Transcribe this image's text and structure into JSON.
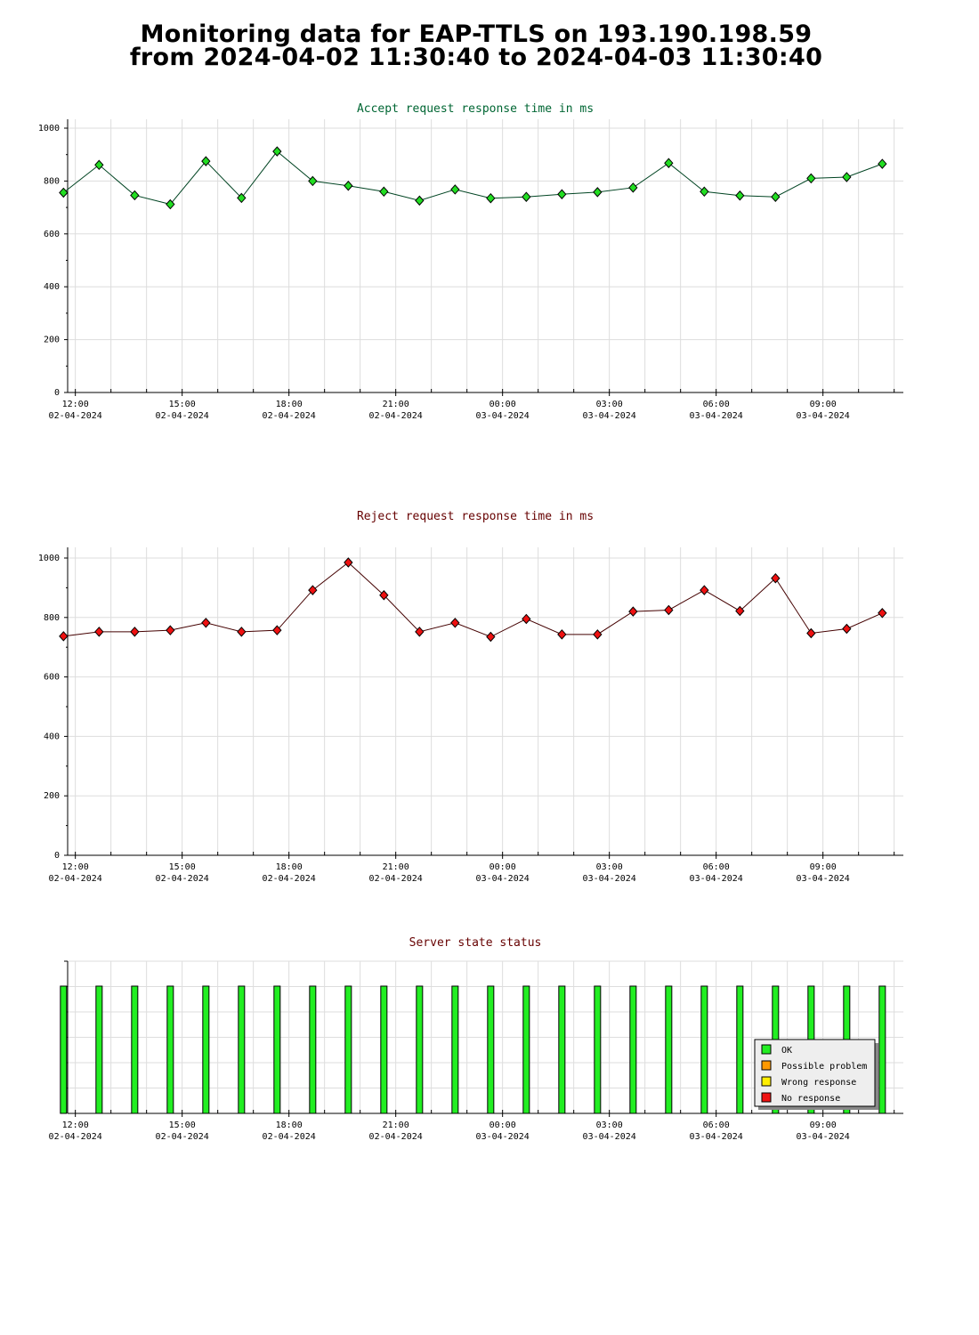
{
  "page": {
    "title_line1": "Monitoring data for EAP-TTLS on 193.190.198.59",
    "title_line2": "from 2024-04-02 11:30:40 to 2024-04-03 11:30:40"
  },
  "colors": {
    "accept_title": "#006633",
    "reject_title": "#660000",
    "status_title": "#660000",
    "accept_marker": "#22dd22",
    "reject_marker": "#ee1111",
    "ok": "#22ee22",
    "possible_problem": "#ff9900",
    "wrong_response": "#ffee00",
    "no_response": "#ee1111",
    "grid": "#dddddd"
  },
  "x_axis": {
    "ticks": [
      {
        "time": "12:00",
        "date": "02-04-2024"
      },
      {
        "time": "15:00",
        "date": "02-04-2024"
      },
      {
        "time": "18:00",
        "date": "02-04-2024"
      },
      {
        "time": "21:00",
        "date": "02-04-2024"
      },
      {
        "time": "00:00",
        "date": "03-04-2024"
      },
      {
        "time": "03:00",
        "date": "03-04-2024"
      },
      {
        "time": "06:00",
        "date": "03-04-2024"
      },
      {
        "time": "09:00",
        "date": "03-04-2024"
      }
    ]
  },
  "chart_data": [
    {
      "type": "line",
      "title": "Accept request response time in ms",
      "xlabel": "",
      "ylabel": "",
      "ylim": [
        0,
        1000
      ],
      "yticks": [
        0,
        200,
        400,
        600,
        800,
        1000
      ],
      "x": [
        "2024-04-02 11:40",
        "2024-04-02 12:40",
        "2024-04-02 13:40",
        "2024-04-02 14:40",
        "2024-04-02 15:40",
        "2024-04-02 16:40",
        "2024-04-02 17:40",
        "2024-04-02 18:40",
        "2024-04-02 19:40",
        "2024-04-02 20:40",
        "2024-04-02 21:40",
        "2024-04-02 22:40",
        "2024-04-02 23:40",
        "2024-04-03 00:40",
        "2024-04-03 01:40",
        "2024-04-03 02:40",
        "2024-04-03 03:40",
        "2024-04-03 04:40",
        "2024-04-03 05:40",
        "2024-04-03 06:40",
        "2024-04-03 07:40",
        "2024-04-03 08:40",
        "2024-04-03 09:40",
        "2024-04-03 10:40"
      ],
      "values": [
        756,
        861,
        746,
        712,
        875,
        736,
        912,
        800,
        782,
        760,
        726,
        768,
        735,
        740,
        750,
        758,
        775,
        868,
        760,
        745,
        740,
        810,
        815,
        865
      ],
      "grid": true
    },
    {
      "type": "line",
      "title": "Reject request response time in ms",
      "xlabel": "",
      "ylabel": "",
      "ylim": [
        0,
        1000
      ],
      "yticks": [
        0,
        200,
        400,
        600,
        800,
        1000
      ],
      "x": [
        "2024-04-02 11:40",
        "2024-04-02 12:40",
        "2024-04-02 13:40",
        "2024-04-02 14:40",
        "2024-04-02 15:40",
        "2024-04-02 16:40",
        "2024-04-02 17:40",
        "2024-04-02 18:40",
        "2024-04-02 19:40",
        "2024-04-02 20:40",
        "2024-04-02 21:40",
        "2024-04-02 22:40",
        "2024-04-02 23:40",
        "2024-04-03 00:40",
        "2024-04-03 01:40",
        "2024-04-03 02:40",
        "2024-04-03 03:40",
        "2024-04-03 04:40",
        "2024-04-03 05:40",
        "2024-04-03 06:40",
        "2024-04-03 07:40",
        "2024-04-03 08:40",
        "2024-04-03 09:40",
        "2024-04-03 10:40"
      ],
      "values": [
        737,
        752,
        752,
        757,
        782,
        752,
        757,
        892,
        985,
        875,
        752,
        782,
        735,
        795,
        743,
        743,
        820,
        825,
        892,
        822,
        932,
        747,
        762,
        815
      ],
      "grid": true
    },
    {
      "type": "bar",
      "title": "Server state status",
      "x": [
        "2024-04-02 11:40",
        "2024-04-02 12:40",
        "2024-04-02 13:40",
        "2024-04-02 14:40",
        "2024-04-02 15:40",
        "2024-04-02 16:40",
        "2024-04-02 17:40",
        "2024-04-02 18:40",
        "2024-04-02 19:40",
        "2024-04-02 20:40",
        "2024-04-02 21:40",
        "2024-04-02 22:40",
        "2024-04-02 23:40",
        "2024-04-03 00:40",
        "2024-04-03 01:40",
        "2024-04-03 02:40",
        "2024-04-03 03:40",
        "2024-04-03 04:40",
        "2024-04-03 05:40",
        "2024-04-03 06:40",
        "2024-04-03 07:40",
        "2024-04-03 08:40",
        "2024-04-03 09:40",
        "2024-04-03 10:40"
      ],
      "values": [
        "OK",
        "OK",
        "OK",
        "OK",
        "OK",
        "OK",
        "OK",
        "OK",
        "OK",
        "OK",
        "OK",
        "OK",
        "OK",
        "OK",
        "OK",
        "OK",
        "OK",
        "OK",
        "OK",
        "OK",
        "OK",
        "OK",
        "OK",
        "OK"
      ],
      "legend": [
        "OK",
        "Possible problem",
        "Wrong response",
        "No response"
      ],
      "legend_position": "bottom-right",
      "grid": true
    }
  ]
}
